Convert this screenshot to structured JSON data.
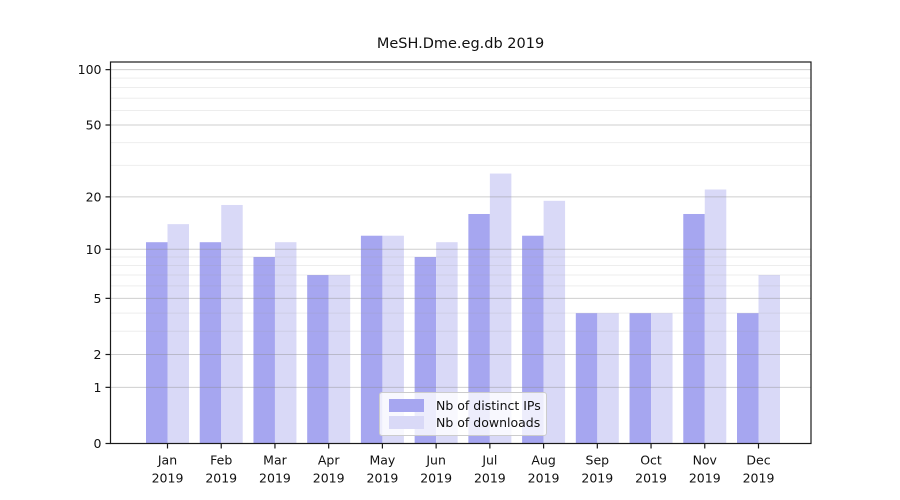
{
  "chart_data": {
    "type": "bar",
    "title": "MeSH.Dme.eg.db 2019",
    "categories": [
      "Jan",
      "Feb",
      "Mar",
      "Apr",
      "May",
      "Jun",
      "Jul",
      "Aug",
      "Sep",
      "Oct",
      "Nov",
      "Dec"
    ],
    "year_label": "2019",
    "series": [
      {
        "name": "Nb of distinct IPs",
        "color": "#a6a6f0",
        "values": [
          11,
          11,
          9,
          7,
          12,
          9,
          16,
          12,
          4,
          4,
          16,
          4
        ]
      },
      {
        "name": "Nb of downloads",
        "color": "#d9d9f7",
        "values": [
          14,
          18,
          11,
          7,
          12,
          11,
          27,
          19,
          4,
          4,
          22,
          7
        ]
      }
    ],
    "yscale": "log1p",
    "ylim": [
      0,
      110
    ],
    "yticks": [
      0,
      1,
      2,
      5,
      10,
      20,
      50,
      100
    ],
    "yticks_minor": [
      3,
      4,
      6,
      7,
      8,
      9,
      30,
      40,
      60,
      70,
      80,
      90
    ],
    "grid": true,
    "legend_position": "lower center"
  },
  "colors": {
    "bar_distinct_ips": "#a6a6f0",
    "bar_downloads": "#d9d9f7",
    "grid_major": "#cfcfcf",
    "grid_minor": "#ededed",
    "spine": "#1a1a1a",
    "text": "#111111",
    "background": "#ffffff"
  }
}
